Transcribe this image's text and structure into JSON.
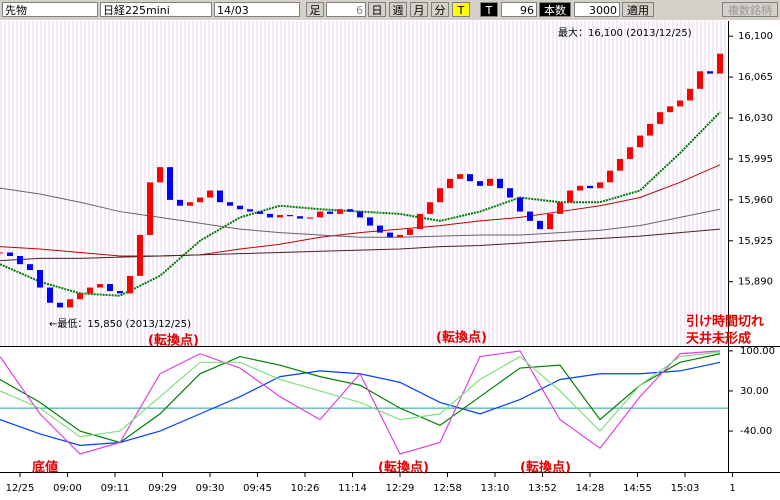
{
  "toolbar": {
    "market": "先物",
    "index": "日経225mini",
    "contract": "14/03",
    "bar_label": "足",
    "bar_num": "6",
    "day": "日",
    "week": "週",
    "month": "月",
    "minute": "分",
    "t1": "T",
    "t2": "T",
    "count": "96",
    "count_label": "本数",
    "bars": "3000",
    "apply": "適用",
    "multi": "複数銘柄"
  },
  "chart_data": [
    {
      "type": "candlestick",
      "annotations": {
        "max": "最大：16,100 (2013/12/25)",
        "min": "←最低：15,850 (2013/12/25)",
        "turn1": "(転換点)",
        "turn2": "(転換点)",
        "turn3": "(転換点)",
        "turn4": "(転換点)",
        "bottom": "底値",
        "close1": "引け時間切れ",
        "close2": "天井未形成"
      },
      "up_color": "#ff0000",
      "down_color": "#0000ff",
      "values": [
        15915,
        15912,
        15905,
        15900,
        15885,
        15872,
        15868,
        15875,
        15880,
        15885,
        15888,
        15882,
        15880,
        15895,
        15930,
        15975,
        15988,
        15960,
        15955,
        15958,
        15962,
        15968,
        15958,
        15955,
        15952,
        15950,
        15948,
        15945,
        15947,
        15946,
        15944,
        15945,
        15950,
        15948,
        15952,
        15950,
        15945,
        15938,
        15932,
        15928,
        15930,
        15935,
        15948,
        15958,
        15970,
        15978,
        15982,
        15976,
        15972,
        15978,
        15970,
        15962,
        15950,
        15942,
        15935,
        15948,
        15958,
        15968,
        15972,
        15970,
        15975,
        15985,
        15995,
        16005,
        16015,
        16025,
        16035,
        16040,
        16045,
        16055,
        16070,
        16068,
        16085
      ],
      "ma_lines": [
        {
          "color": "#007a00",
          "values": [
            15905,
            15890,
            15880,
            15878,
            15895,
            15925,
            15945,
            15955,
            15952,
            15950,
            15948,
            15942,
            15950,
            15962,
            15958,
            15958,
            15968,
            16000,
            16035
          ]
        },
        {
          "color": "#c00000",
          "values": [
            15920,
            15918,
            15915,
            15912,
            15912,
            15913,
            15918,
            15922,
            15928,
            15932,
            15935,
            15938,
            15942,
            15945,
            15950,
            15955,
            15962,
            15975,
            15990
          ]
        },
        {
          "color": "#706060",
          "values": [
            15970,
            15965,
            15958,
            15950,
            15945,
            15940,
            15935,
            15932,
            15930,
            15928,
            15928,
            15929,
            15930,
            15930,
            15932,
            15934,
            15938,
            15945,
            15952
          ]
        },
        {
          "color": "#502020",
          "values": [
            15908,
            15910,
            15910,
            15911,
            15912,
            15913,
            15914,
            15915,
            15916,
            15917,
            15918,
            15920,
            15921,
            15923,
            15925,
            15927,
            15929,
            15932,
            15935
          ]
        }
      ],
      "ylim": [
        15835,
        16113
      ],
      "yticks": [
        {
          "value": 16100,
          "label": "16,100"
        },
        {
          "value": 16065,
          "label": "16,065"
        },
        {
          "value": 16030,
          "label": "16,030"
        },
        {
          "value": 15995,
          "label": "15,995"
        },
        {
          "value": 15960,
          "label": "15,960"
        },
        {
          "value": 15925,
          "label": "15,925"
        },
        {
          "value": 15890,
          "label": "15,890"
        }
      ],
      "xticks": [
        "12/25",
        "09:00",
        "09:11",
        "09:29",
        "09:30",
        "09:45",
        "10:26",
        "11:14",
        "12:29",
        "12:58",
        "13:10",
        "13:52",
        "14:28",
        "14:55",
        "15:03",
        "1"
      ]
    },
    {
      "type": "line",
      "ylim": [
        -108,
        105
      ],
      "yticks": [
        {
          "value": 100,
          "label": "100.00"
        },
        {
          "value": 30,
          "label": "30.00"
        },
        {
          "value": -40,
          "label": "-40.00"
        }
      ],
      "series": [
        {
          "color": "#0040ff",
          "values": [
            -20,
            -45,
            -65,
            -60,
            -40,
            -10,
            20,
            55,
            65,
            60,
            45,
            10,
            -10,
            15,
            50,
            60,
            60,
            65,
            80
          ]
        },
        {
          "color": "#008000",
          "values": [
            50,
            10,
            -40,
            -60,
            -10,
            60,
            90,
            75,
            55,
            40,
            0,
            -30,
            20,
            70,
            75,
            -20,
            40,
            80,
            95
          ]
        },
        {
          "color": "#e040e0",
          "values": [
            90,
            -10,
            -80,
            -60,
            60,
            95,
            70,
            20,
            -20,
            60,
            -80,
            -60,
            90,
            100,
            -20,
            -70,
            20,
            95,
            100
          ]
        },
        {
          "color": "#80e080",
          "values": [
            30,
            0,
            -50,
            -40,
            20,
            80,
            80,
            50,
            30,
            10,
            -20,
            -10,
            50,
            90,
            30,
            -40,
            40,
            90,
            98
          ]
        }
      ]
    }
  ]
}
